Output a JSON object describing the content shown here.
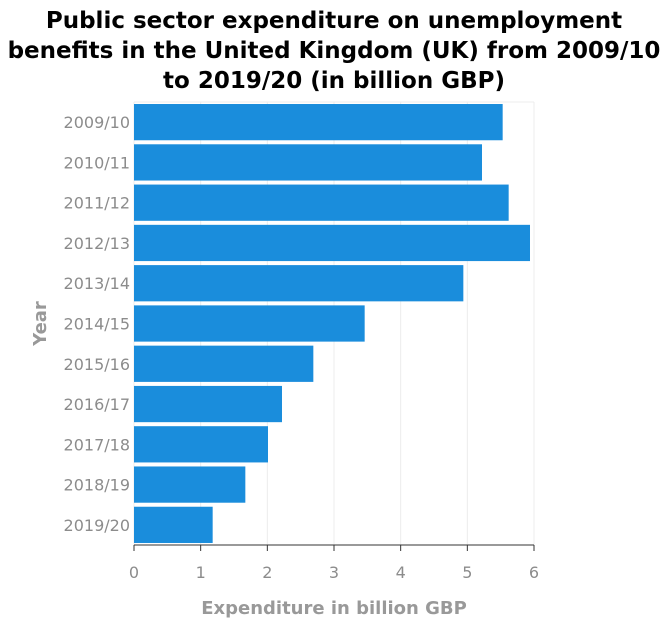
{
  "chart_data": {
    "type": "bar",
    "orientation": "horizontal",
    "title": "Public sector expenditure on unemployment benefits in the United Kingdom (UK) from 2009/10 to 2019/20 (in billion GBP)",
    "xlabel": "Expenditure in billion GBP",
    "ylabel": "Year",
    "categories": [
      "2009/10",
      "2010/11",
      "2011/12",
      "2012/13",
      "2013/14",
      "2014/15",
      "2015/16",
      "2016/17",
      "2017/18",
      "2018/19",
      "2019/20"
    ],
    "values": [
      5.53,
      5.22,
      5.62,
      5.94,
      4.94,
      3.46,
      2.69,
      2.22,
      2.01,
      1.67,
      1.18
    ],
    "xlim": [
      0,
      6
    ],
    "xticks": [
      "0",
      "1",
      "2",
      "3",
      "4",
      "5",
      "6"
    ],
    "grid": true,
    "bar_color": "#1a8ddc"
  }
}
